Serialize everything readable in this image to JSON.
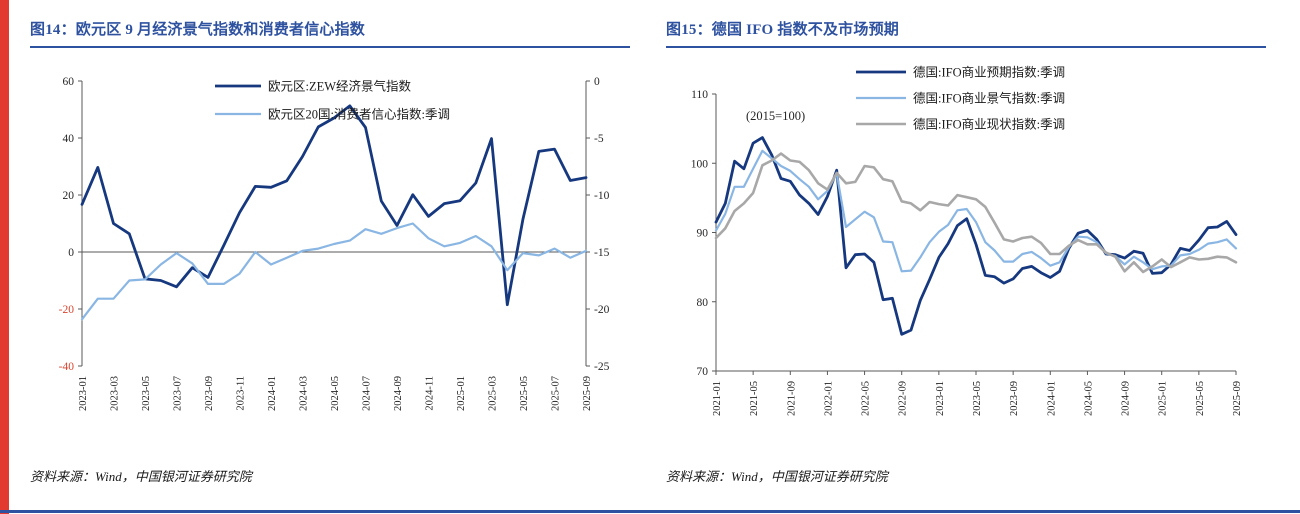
{
  "page": {
    "accent_red": "#e23a2e",
    "accent_blue": "#2e52a0",
    "title_color": "#2e52a0",
    "negative_tick_color": "#d9442f"
  },
  "figures": [
    {
      "title": "图14：欧元区 9 月经济景气指数和消费者信心指数",
      "source": "资料来源：Wind，中国银河证券研究院"
    },
    {
      "title": "图15：德国 IFO 指数不及市场预期",
      "source": "资料来源：Wind，中国银河证券研究院"
    }
  ],
  "chart_data": [
    {
      "type": "line",
      "title": "图14：欧元区 9 月经济景气指数和消费者信心指数",
      "grid": false,
      "legend_position": "top",
      "categories": [
        "2023-01",
        "2023-02",
        "2023-03",
        "2023-04",
        "2023-05",
        "2023-06",
        "2023-07",
        "2023-08",
        "2023-09",
        "2023-10",
        "2023-11",
        "2023-12",
        "2024-01",
        "2024-02",
        "2024-03",
        "2024-04",
        "2024-05",
        "2024-06",
        "2024-07",
        "2024-08",
        "2024-09",
        "2024-10",
        "2024-11",
        "2024-12",
        "2025-01",
        "2025-02",
        "2025-03",
        "2025-04",
        "2025-05",
        "2025-06",
        "2025-07",
        "2025-08",
        "2025-09"
      ],
      "x_tick_labels": [
        "2023-01",
        "2023-03",
        "2023-05",
        "2023-07",
        "2023-09",
        "2023-11",
        "2024-01",
        "2024-03",
        "2024-05",
        "2024-07",
        "2024-09",
        "2024-11",
        "2025-01",
        "2025-03",
        "2025-05",
        "2025-07",
        "2025-09"
      ],
      "left_axis": {
        "min": -40,
        "max": 60,
        "ticks": [
          60,
          40,
          20,
          0,
          -20,
          -40
        ],
        "negative_color": "#d9442f"
      },
      "right_axis": {
        "min": -25,
        "max": 0,
        "ticks": [
          0,
          -5,
          -10,
          -15,
          -20,
          -25
        ]
      },
      "series": [
        {
          "name": "欧元区:ZEW经济景气指数",
          "axis": "left",
          "color": "#16387f",
          "width": 2.8,
          "values": [
            16.7,
            29.7,
            10.0,
            6.4,
            -9.4,
            -10.0,
            -12.2,
            -5.5,
            -8.9,
            2.3,
            13.8,
            23.0,
            22.7,
            25.0,
            33.5,
            43.9,
            47.0,
            51.3,
            43.7,
            17.9,
            9.3,
            20.1,
            12.5,
            17.0,
            18.0,
            24.2,
            39.8,
            -18.5,
            11.6,
            35.3,
            36.1,
            25.1,
            26.1
          ]
        },
        {
          "name": "欧元区20国:消费者信心指数:季调",
          "axis": "right",
          "color": "#8ab6e4",
          "width": 2.2,
          "values": [
            -20.9,
            -19.1,
            -19.1,
            -17.5,
            -17.4,
            -16.1,
            -15.1,
            -16.0,
            -17.8,
            -17.8,
            -16.9,
            -15.0,
            -16.1,
            -15.5,
            -14.9,
            -14.7,
            -14.3,
            -14.0,
            -13.0,
            -13.4,
            -12.9,
            -12.5,
            -13.8,
            -14.5,
            -14.2,
            -13.6,
            -14.5,
            -16.6,
            -15.1,
            -15.3,
            -14.7,
            -15.5,
            -14.9
          ]
        }
      ]
    },
    {
      "type": "line",
      "title": "图15：德国 IFO 指数不及市场预期",
      "annotation": "(2015=100)",
      "grid": false,
      "legend_position": "top",
      "categories": [
        "2021-01",
        "2021-02",
        "2021-03",
        "2021-04",
        "2021-05",
        "2021-06",
        "2021-07",
        "2021-08",
        "2021-09",
        "2021-10",
        "2021-11",
        "2021-12",
        "2022-01",
        "2022-02",
        "2022-03",
        "2022-04",
        "2022-05",
        "2022-06",
        "2022-07",
        "2022-08",
        "2022-09",
        "2022-10",
        "2022-11",
        "2022-12",
        "2023-01",
        "2023-02",
        "2023-03",
        "2023-04",
        "2023-05",
        "2023-06",
        "2023-07",
        "2023-08",
        "2023-09",
        "2023-10",
        "2023-11",
        "2023-12",
        "2024-01",
        "2024-02",
        "2024-03",
        "2024-04",
        "2024-05",
        "2024-06",
        "2024-07",
        "2024-08",
        "2024-09",
        "2024-10",
        "2024-11",
        "2024-12",
        "2025-01",
        "2025-02",
        "2025-03",
        "2025-04",
        "2025-05",
        "2025-06",
        "2025-07",
        "2025-08",
        "2025-09"
      ],
      "x_tick_labels": [
        "2021-01",
        "2021-05",
        "2021-09",
        "2022-01",
        "2022-05",
        "2022-09",
        "2023-01",
        "2023-05",
        "2023-09",
        "2024-01",
        "2024-05",
        "2024-09",
        "2025-01",
        "2025-05",
        "2025-09"
      ],
      "left_axis": {
        "min": 70,
        "max": 110,
        "ticks": [
          110,
          100,
          90,
          80,
          70
        ]
      },
      "series": [
        {
          "name": "德国:IFO商业预期指数:季调",
          "axis": "left",
          "color": "#16387f",
          "width": 2.8,
          "values": [
            91.5,
            94.2,
            100.3,
            99.2,
            102.9,
            103.7,
            101.2,
            97.8,
            97.4,
            95.4,
            94.2,
            92.6,
            95.2,
            99.0,
            84.9,
            86.8,
            86.9,
            85.7,
            80.3,
            80.5,
            75.3,
            75.9,
            80.2,
            83.2,
            86.4,
            88.4,
            91.0,
            92.0,
            88.3,
            83.8,
            83.6,
            82.7,
            83.3,
            84.8,
            85.1,
            84.2,
            83.5,
            84.4,
            87.7,
            89.9,
            90.3,
            89.0,
            86.9,
            86.8,
            86.3,
            87.3,
            87.0,
            84.1,
            84.2,
            85.4,
            87.7,
            87.4,
            88.9,
            90.7,
            90.8,
            91.6,
            89.7
          ]
        },
        {
          "name": "德国:IFO商业景气指数:季调",
          "axis": "left",
          "color": "#8ab6e4",
          "width": 2.2,
          "values": [
            90.3,
            92.7,
            96.6,
            96.6,
            99.2,
            101.8,
            100.7,
            99.6,
            98.9,
            97.7,
            96.6,
            94.8,
            96.0,
            98.5,
            90.8,
            91.9,
            93.0,
            92.2,
            88.7,
            88.6,
            84.4,
            84.5,
            86.4,
            88.6,
            90.1,
            91.1,
            93.2,
            93.4,
            91.5,
            88.6,
            87.4,
            85.8,
            85.8,
            86.9,
            87.2,
            86.3,
            85.2,
            85.7,
            87.9,
            89.4,
            89.3,
            88.6,
            87.0,
            86.6,
            85.4,
            86.5,
            85.7,
            84.7,
            85.1,
            85.2,
            86.7,
            86.9,
            87.5,
            88.4,
            88.6,
            89.0,
            87.7
          ]
        },
        {
          "name": "德国:IFO商业现状指数:季调",
          "axis": "left",
          "color": "#a8a8a8",
          "width": 2.6,
          "values": [
            89.2,
            90.6,
            93.1,
            94.2,
            95.7,
            99.7,
            100.4,
            101.4,
            100.4,
            100.2,
            99.0,
            97.1,
            96.2,
            98.6,
            97.1,
            97.3,
            99.6,
            99.4,
            97.7,
            97.4,
            94.5,
            94.2,
            93.2,
            94.4,
            94.1,
            93.9,
            95.4,
            95.1,
            94.8,
            93.7,
            91.4,
            89.0,
            88.7,
            89.2,
            89.4,
            88.5,
            86.9,
            86.9,
            88.1,
            88.9,
            88.3,
            88.3,
            87.1,
            86.5,
            84.4,
            85.7,
            84.3,
            85.1,
            86.1,
            85.0,
            85.7,
            86.4,
            86.1,
            86.2,
            86.5,
            86.4,
            85.7
          ]
        }
      ]
    }
  ]
}
